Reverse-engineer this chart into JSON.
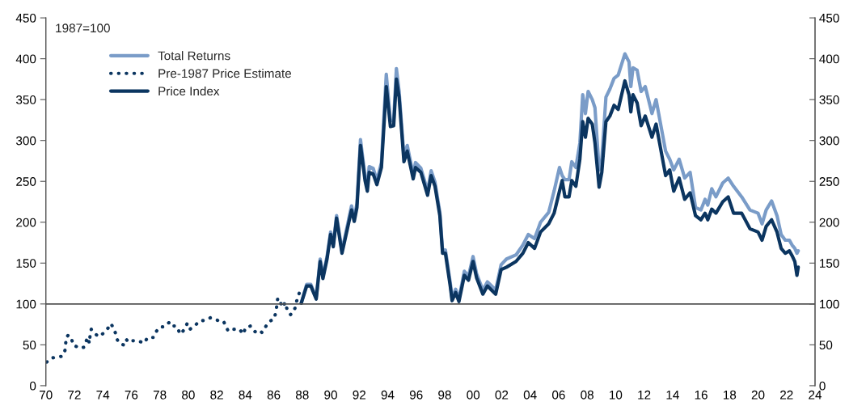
{
  "chart_data": {
    "type": "line",
    "annotations": [
      "1987=100"
    ],
    "xlim": [
      1970,
      2024
    ],
    "xticks": [
      {
        "value": 1970,
        "label": "70"
      },
      {
        "value": 1972,
        "label": "72"
      },
      {
        "value": 1974,
        "label": "74"
      },
      {
        "value": 1976,
        "label": "76"
      },
      {
        "value": 1978,
        "label": "78"
      },
      {
        "value": 1980,
        "label": "80"
      },
      {
        "value": 1982,
        "label": "82"
      },
      {
        "value": 1984,
        "label": "84"
      },
      {
        "value": 1986,
        "label": "86"
      },
      {
        "value": 1988,
        "label": "88"
      },
      {
        "value": 1990,
        "label": "90"
      },
      {
        "value": 1992,
        "label": "92"
      },
      {
        "value": 1994,
        "label": "94"
      },
      {
        "value": 1996,
        "label": "96"
      },
      {
        "value": 1998,
        "label": "98"
      },
      {
        "value": 2000,
        "label": "00"
      },
      {
        "value": 2002,
        "label": "02"
      },
      {
        "value": 2004,
        "label": "04"
      },
      {
        "value": 2006,
        "label": "06"
      },
      {
        "value": 2008,
        "label": "08"
      },
      {
        "value": 2010,
        "label": "10"
      },
      {
        "value": 2012,
        "label": "12"
      },
      {
        "value": 2014,
        "label": "14"
      },
      {
        "value": 2016,
        "label": "16"
      },
      {
        "value": 2018,
        "label": "18"
      },
      {
        "value": 2020,
        "label": "20"
      },
      {
        "value": 2022,
        "label": "22"
      },
      {
        "value": 2024,
        "label": "24"
      }
    ],
    "ylim": [
      0,
      450
    ],
    "yticks": [
      0,
      50,
      100,
      150,
      200,
      250,
      300,
      350,
      400,
      450
    ],
    "y2lim": [
      0,
      450
    ],
    "y2ticks": [
      0,
      50,
      100,
      150,
      200,
      250,
      300,
      350,
      400,
      450
    ],
    "ref_lines": [
      {
        "axis": "y",
        "value": 100,
        "color": "#555555"
      }
    ],
    "grid": false,
    "legend": "top left",
    "series": [
      {
        "name": "Total Returns",
        "color": "#7a9cc8",
        "line_style": "solid",
        "x": [
          1987.93,
          1988.31,
          1988.6,
          1988.98,
          1989.26,
          1989.45,
          1989.74,
          1989.99,
          1990.18,
          1990.41,
          1990.79,
          1991.17,
          1991.46,
          1991.65,
          1991.84,
          1992.09,
          1992.41,
          1992.57,
          1992.7,
          1992.98,
          1993.24,
          1993.56,
          1993.9,
          1994.19,
          1994.42,
          1994.61,
          1994.8,
          1995.14,
          1995.37,
          1995.79,
          1995.95,
          1996.33,
          1996.8,
          1997.05,
          1997.32,
          1997.66,
          1997.85,
          1998.05,
          1998.39,
          1998.52,
          1998.77,
          1999.0,
          1999.38,
          1999.67,
          1999.99,
          2000.24,
          2000.68,
          2001.0,
          2001.29,
          2001.58,
          2001.96,
          2002.34,
          2003.01,
          2003.49,
          2003.87,
          2004.31,
          2004.73,
          2005.3,
          2005.68,
          2006.06,
          2006.25,
          2006.44,
          2006.73,
          2006.92,
          2007.21,
          2007.49,
          2007.69,
          2007.88,
          2008.07,
          2008.36,
          2008.55,
          2008.84,
          2009.03,
          2009.32,
          2009.6,
          2009.89,
          2010.18,
          2010.65,
          2010.94,
          2011.07,
          2011.22,
          2011.51,
          2011.79,
          2012.08,
          2012.55,
          2012.84,
          2013.51,
          2013.8,
          2014.08,
          2014.46,
          2014.85,
          2015.23,
          2015.61,
          2015.99,
          2016.28,
          2016.47,
          2016.75,
          2017.04,
          2017.52,
          2017.9,
          2018.28,
          2018.85,
          2019.43,
          2020.0,
          2020.28,
          2020.57,
          2020.95,
          2021.33,
          2021.62,
          2021.91,
          2022.2,
          2022.39,
          2022.58,
          2022.73,
          2022.82
        ],
        "values": [
          101,
          124,
          124,
          108,
          155,
          134,
          158,
          188,
          173,
          208,
          165,
          196,
          220,
          205,
          223,
          301,
          256,
          243,
          268,
          266,
          251,
          273,
          381,
          324,
          325,
          388,
          360,
          280,
          294,
          258,
          273,
          266,
          238,
          263,
          249,
          212,
          166,
          166,
          126,
          107,
          118,
          106,
          140,
          134,
          158,
          137,
          117,
          127,
          122,
          117,
          148,
          155,
          160,
          172,
          185,
          180,
          200,
          212,
          238,
          267,
          257,
          252,
          252,
          274,
          267,
          297,
          356,
          333,
          360,
          350,
          340,
          264,
          277,
          353,
          363,
          376,
          380,
          406,
          396,
          366,
          389,
          386,
          360,
          366,
          333,
          350,
          287,
          277,
          264,
          277,
          254,
          261,
          218,
          215,
          228,
          221,
          241,
          231,
          248,
          254,
          244,
          231,
          215,
          211,
          198,
          215,
          226,
          208,
          185,
          178,
          178,
          172,
          168,
          162,
          165
        ]
      },
      {
        "name": "Pre-1987 Price Estimate",
        "color": "#0b3560",
        "line_style": "dotted",
        "x": [
          1970.06,
          1970.44,
          1970.76,
          1971.15,
          1971.34,
          1971.39,
          1971.43,
          1971.58,
          1971.81,
          1971.91,
          1972.04,
          1972.33,
          1972.67,
          1972.81,
          1972.96,
          1973.05,
          1973.11,
          1973.19,
          1973.34,
          1973.72,
          1974.1,
          1974.39,
          1974.58,
          1974.9,
          1975.02,
          1975.25,
          1975.44,
          1975.63,
          1975.82,
          1976.11,
          1976.49,
          1976.87,
          1977.16,
          1977.54,
          1977.73,
          1978.02,
          1978.26,
          1978.49,
          1978.78,
          1978.97,
          1979.16,
          1979.45,
          1979.73,
          1979.92,
          1980.11,
          1980.5,
          1980.78,
          1981.16,
          1981.55,
          1981.89,
          1982.21,
          1982.46,
          1982.65,
          1982.79,
          1983.07,
          1983.3,
          1983.61,
          1983.84,
          1984.03,
          1984.37,
          1984.69,
          1984.98,
          1985.17,
          1985.46,
          1985.74,
          1986.03,
          1986.16,
          1986.28,
          1986.41,
          1986.51,
          1986.66,
          1986.79,
          1986.98,
          1987.18,
          1987.42,
          1987.56,
          1987.65,
          1987.81
        ],
        "values": [
          29,
          34,
          35,
          36,
          43,
          51,
          59,
          62,
          57,
          50,
          49,
          46,
          47,
          54,
          59,
          52,
          62,
          69,
          65,
          60,
          65,
          71,
          76,
          64,
          56,
          51,
          50,
          57,
          53,
          55,
          55,
          52,
          59,
          59,
          66,
          72,
          72,
          76,
          78,
          73,
          73,
          63,
          69,
          76,
          69,
          74,
          79,
          80,
          83,
          81,
          79,
          79,
          73,
          67,
          69,
          69,
          69,
          63,
          71,
          73,
          66,
          68,
          65,
          73,
          79,
          82,
          91,
          107,
          105,
          100,
          96,
          102,
          91,
          87,
          91,
          99,
          107,
          114
        ]
      },
      {
        "name": "Price Index",
        "color": "#0b3560",
        "line_style": "solid",
        "x": [
          1987.93,
          1988.31,
          1988.6,
          1988.98,
          1989.26,
          1989.45,
          1989.74,
          1989.99,
          1990.18,
          1990.41,
          1990.79,
          1991.17,
          1991.46,
          1991.65,
          1991.84,
          1992.09,
          1992.41,
          1992.57,
          1992.7,
          1992.98,
          1993.24,
          1993.56,
          1993.9,
          1994.19,
          1994.42,
          1994.61,
          1994.8,
          1995.14,
          1995.37,
          1995.79,
          1995.95,
          1996.33,
          1996.8,
          1997.05,
          1997.32,
          1997.66,
          1997.85,
          1998.05,
          1998.39,
          1998.52,
          1998.77,
          1999.0,
          1999.38,
          1999.67,
          1999.99,
          2000.24,
          2000.68,
          2001.0,
          2001.29,
          2001.58,
          2001.96,
          2002.34,
          2003.01,
          2003.49,
          2003.87,
          2004.31,
          2004.73,
          2005.3,
          2005.68,
          2006.06,
          2006.25,
          2006.44,
          2006.73,
          2006.92,
          2007.21,
          2007.49,
          2007.69,
          2007.88,
          2008.07,
          2008.36,
          2008.55,
          2008.84,
          2009.03,
          2009.32,
          2009.6,
          2009.89,
          2010.18,
          2010.65,
          2010.94,
          2011.07,
          2011.22,
          2011.51,
          2011.79,
          2012.08,
          2012.55,
          2012.84,
          2013.51,
          2013.8,
          2014.08,
          2014.46,
          2014.85,
          2015.23,
          2015.61,
          2015.99,
          2016.28,
          2016.47,
          2016.75,
          2017.04,
          2017.52,
          2017.9,
          2018.28,
          2018.85,
          2019.43,
          2020.0,
          2020.28,
          2020.57,
          2020.95,
          2021.33,
          2021.62,
          2021.91,
          2022.2,
          2022.39,
          2022.58,
          2022.73,
          2022.82
        ],
        "values": [
          101,
          122,
          122,
          106,
          152,
          131,
          155,
          185,
          170,
          205,
          162,
          192,
          215,
          201,
          218,
          294,
          251,
          238,
          261,
          259,
          246,
          267,
          366,
          317,
          318,
          375,
          353,
          274,
          287,
          253,
          267,
          261,
          233,
          257,
          244,
          208,
          162,
          162,
          122,
          104,
          114,
          103,
          135,
          129,
          152,
          132,
          112,
          122,
          117,
          112,
          142,
          145,
          152,
          162,
          175,
          168,
          188,
          198,
          211,
          238,
          251,
          231,
          231,
          251,
          244,
          277,
          323,
          304,
          327,
          320,
          297,
          243,
          261,
          323,
          330,
          343,
          338,
          373,
          356,
          335,
          356,
          346,
          318,
          330,
          304,
          320,
          257,
          264,
          238,
          254,
          228,
          236,
          208,
          203,
          211,
          203,
          216,
          211,
          225,
          231,
          211,
          211,
          192,
          188,
          178,
          195,
          203,
          188,
          168,
          162,
          165,
          159,
          152,
          135,
          145
        ]
      }
    ]
  }
}
